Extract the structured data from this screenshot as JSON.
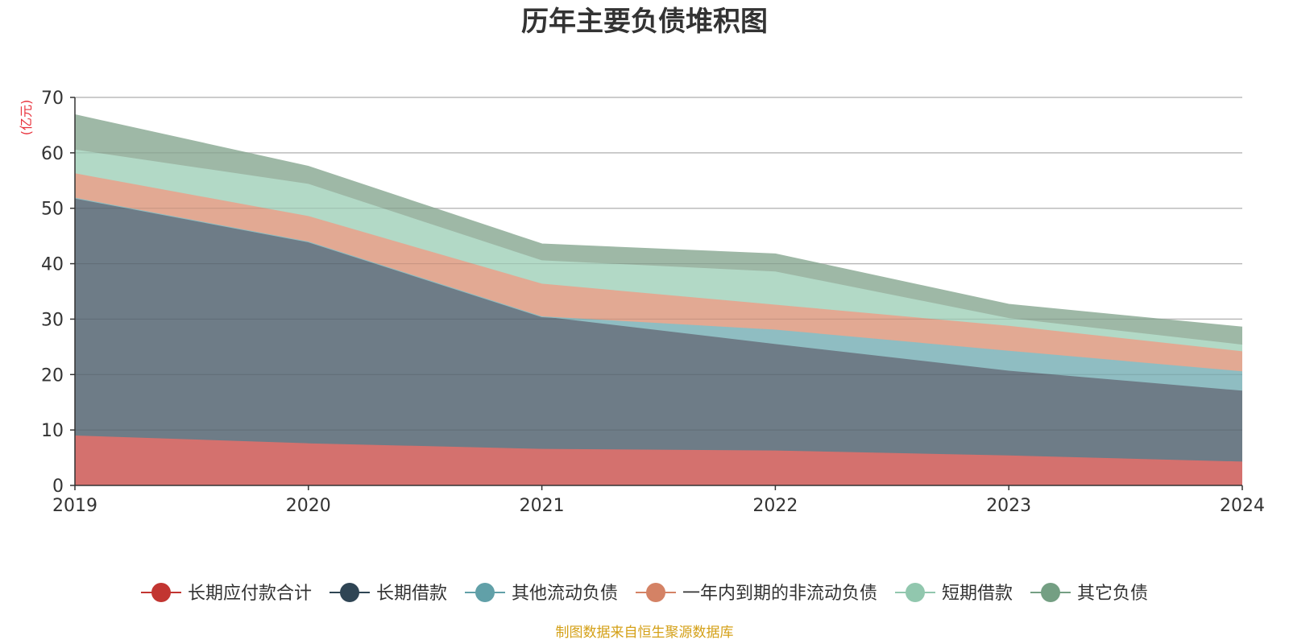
{
  "chart_data": {
    "type": "area",
    "stacked": true,
    "title": "历年主要负债堆积图",
    "unit_label": "(亿元)",
    "x": [
      "2019",
      "2020",
      "2021",
      "2022",
      "2023",
      "2024"
    ],
    "ylim": [
      0,
      70
    ],
    "yticks": [
      0,
      10,
      20,
      30,
      40,
      50,
      60,
      70
    ],
    "series": [
      {
        "name": "长期应付款合计",
        "values": [
          9.0,
          7.6,
          6.6,
          6.3,
          5.4,
          4.3
        ],
        "color": "#c23531",
        "area_color": "#d4716e"
      },
      {
        "name": "长期借款",
        "values": [
          42.9,
          36.4,
          23.9,
          19.2,
          15.3,
          12.8
        ],
        "color": "#2f4554",
        "area_color": "#6e7c87"
      },
      {
        "name": "其他流动负债",
        "values": [
          0.0,
          0.0,
          0.0,
          2.6,
          3.6,
          3.5
        ],
        "color": "#61a0a8",
        "area_color": "#8fbdc2"
      },
      {
        "name": "一年内到期的非流动负债",
        "values": [
          4.4,
          4.6,
          5.9,
          4.5,
          4.5,
          3.6
        ],
        "color": "#d48265",
        "area_color": "#e2a993"
      },
      {
        "name": "短期借款",
        "values": [
          4.3,
          5.8,
          4.2,
          6.0,
          1.4,
          1.2
        ],
        "color": "#91c7ae",
        "area_color": "#b2d9c6"
      },
      {
        "name": "其它负债",
        "values": [
          6.2,
          3.1,
          2.9,
          3.1,
          2.4,
          3.1
        ],
        "color": "#749f83",
        "area_color": "#9eb8a6"
      }
    ],
    "legend_position": "bottom",
    "source": "制图数据来自恒生聚源数据库",
    "title_color": "#333333",
    "unit_color": "#e8323c",
    "source_color": "#d4a017"
  }
}
